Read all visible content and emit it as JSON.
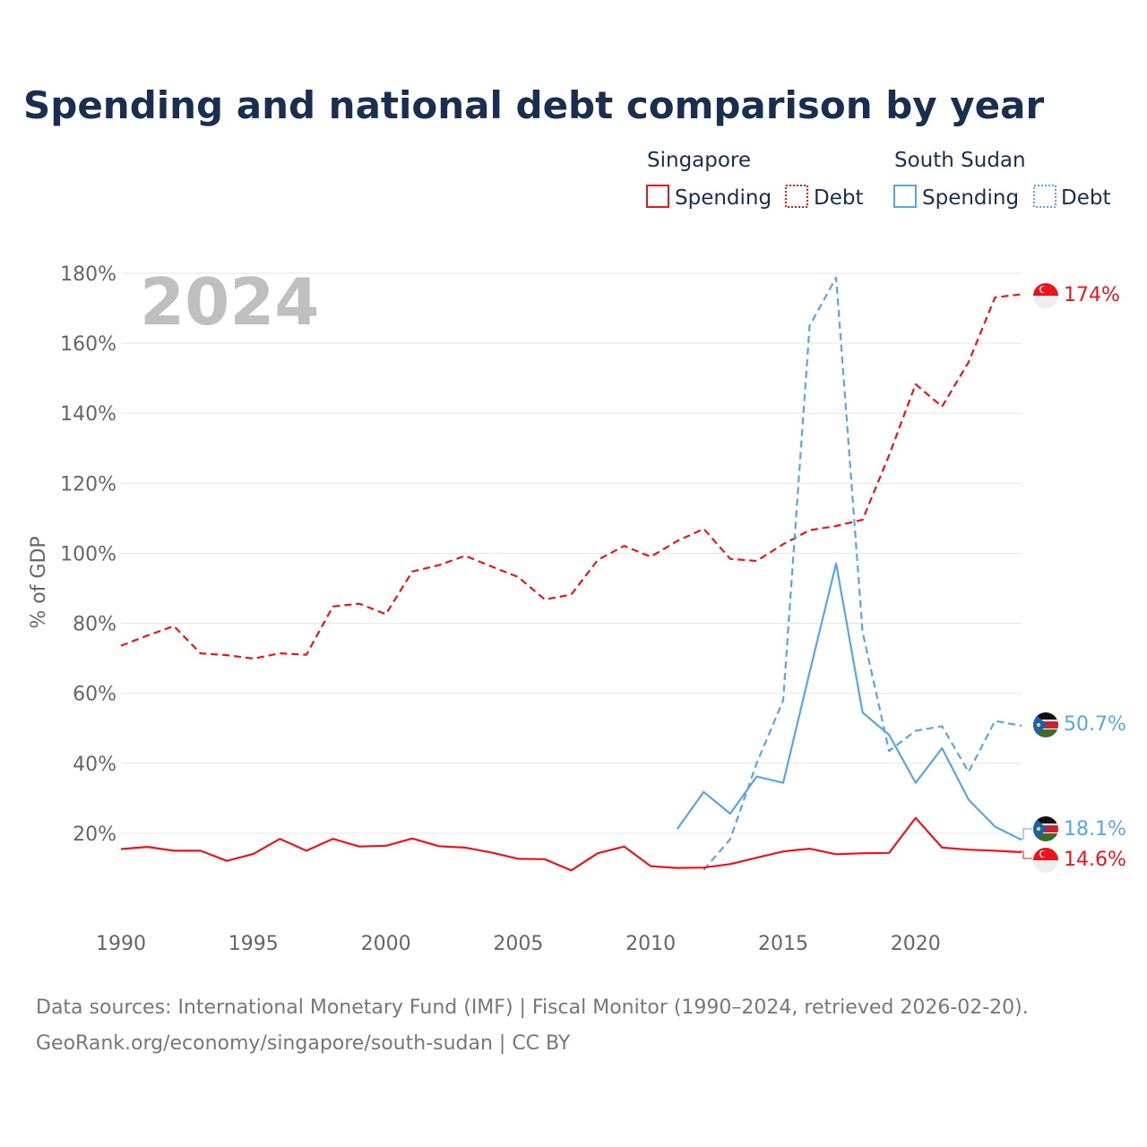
{
  "title": "Spending and national debt comparison by year",
  "year_label": "2024",
  "legend": {
    "groups": [
      {
        "country": "Singapore",
        "spending": "Spending",
        "debt": "Debt",
        "color": "#e8151b"
      },
      {
        "country": "South Sudan",
        "spending": "Spending",
        "debt": "Debt",
        "color": "#5aa5e6"
      }
    ]
  },
  "source": {
    "line1": "Data sources: International Monetary Fund (IMF) | Fiscal Monitor (1990–2024, retrieved 2026-02-20).",
    "line2": "GeoRank.org/economy/singapore/south-sudan | CC BY"
  },
  "end_labels": {
    "sg_debt": "174%",
    "ss_debt": "50.7%",
    "ss_spending": "18.1%",
    "sg_spending": "14.6%"
  },
  "chart_data": {
    "type": "line",
    "title": "Spending and national debt comparison by year",
    "xlabel": "",
    "ylabel": "% of GDP",
    "xlim": [
      1990,
      2024
    ],
    "ylim": [
      0,
      180
    ],
    "x_ticks": [
      {
        "value": 1990,
        "label": "1990"
      },
      {
        "value": 1995,
        "label": "1995"
      },
      {
        "value": 2000,
        "label": "2000"
      },
      {
        "value": 2005,
        "label": "2005"
      },
      {
        "value": 2010,
        "label": "2010"
      },
      {
        "value": 2015,
        "label": "2015"
      },
      {
        "value": 2020,
        "label": "2020"
      }
    ],
    "y_ticks": [
      {
        "value": 20,
        "label": "20%"
      },
      {
        "value": 40,
        "label": "40%"
      },
      {
        "value": 60,
        "label": "60%"
      },
      {
        "value": 80,
        "label": "80%"
      },
      {
        "value": 100,
        "label": "100%"
      },
      {
        "value": 120,
        "label": "120%"
      },
      {
        "value": 140,
        "label": "140%"
      },
      {
        "value": 160,
        "label": "160%"
      },
      {
        "value": 180,
        "label": "180%"
      }
    ],
    "series": [
      {
        "id": "sg_debt",
        "name": "Singapore Debt",
        "color": "#e8151b",
        "dashed": true,
        "x": [
          1990,
          1991,
          1992,
          1993,
          1994,
          1995,
          1996,
          1997,
          1998,
          1999,
          2000,
          2001,
          2002,
          2003,
          2004,
          2005,
          2006,
          2007,
          2008,
          2009,
          2010,
          2011,
          2012,
          2013,
          2014,
          2015,
          2016,
          2017,
          2018,
          2019,
          2020,
          2021,
          2022,
          2023,
          2024
        ],
        "values": [
          73.6,
          76.5,
          79.2,
          71.4,
          70.9,
          69.9,
          71.4,
          71.0,
          84.8,
          85.6,
          82.6,
          94.8,
          96.6,
          99.3,
          96.2,
          93.2,
          86.8,
          88.2,
          98.1,
          102.1,
          99.0,
          103.5,
          107.0,
          98.4,
          97.8,
          102.6,
          106.6,
          107.8,
          109.6,
          128.0,
          148.3,
          141.9,
          154.6,
          173.1,
          174.0
        ]
      },
      {
        "id": "ss_debt",
        "name": "South Sudan Debt",
        "color": "#5aa5e6",
        "dashed": true,
        "x": [
          2012,
          2013,
          2014,
          2015,
          2016,
          2017,
          2018,
          2019,
          2020,
          2021,
          2022,
          2023,
          2024
        ],
        "values": [
          9.5,
          18.3,
          40.0,
          58.0,
          165.0,
          178.8,
          77.5,
          43.5,
          49.3,
          50.6,
          37.5,
          52.1,
          50.7
        ]
      },
      {
        "id": "ss_spending",
        "name": "South Sudan Spending",
        "color": "#5aa5e6",
        "dashed": false,
        "x": [
          2011,
          2012,
          2013,
          2014,
          2015,
          2016,
          2017,
          2018,
          2019,
          2020,
          2021,
          2022,
          2023,
          2024
        ],
        "values": [
          21.2,
          31.8,
          25.6,
          36.2,
          34.4,
          66.0,
          97.1,
          54.5,
          48.1,
          34.4,
          44.3,
          29.6,
          21.9,
          18.1
        ]
      },
      {
        "id": "sg_spending",
        "name": "Singapore Spending",
        "color": "#e8151b",
        "dashed": false,
        "x": [
          1990,
          1991,
          1992,
          1993,
          1994,
          1995,
          1996,
          1997,
          1998,
          1999,
          2000,
          2001,
          2002,
          2003,
          2004,
          2005,
          2006,
          2007,
          2008,
          2009,
          2010,
          2011,
          2012,
          2013,
          2014,
          2015,
          2016,
          2017,
          2018,
          2019,
          2020,
          2021,
          2022,
          2023,
          2024
        ],
        "values": [
          15.5,
          16.1,
          15.0,
          15.0,
          12.1,
          14.1,
          18.4,
          15.0,
          18.4,
          16.2,
          16.4,
          18.5,
          16.3,
          15.9,
          14.5,
          12.7,
          12.6,
          9.4,
          14.3,
          16.2,
          10.6,
          10.1,
          10.2,
          11.2,
          13.0,
          14.8,
          15.6,
          14.0,
          14.3,
          14.4,
          24.4,
          15.9,
          15.3,
          15.0,
          14.6
        ]
      }
    ]
  }
}
